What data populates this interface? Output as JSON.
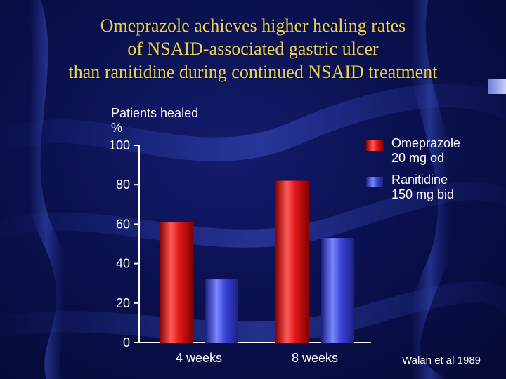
{
  "title_lines": [
    "Omeprazole achieves higher healing rates",
    "of NSAID-associated gastric ulcer",
    "than ranitidine during continued NSAID treatment"
  ],
  "source_note": "Walan et al 1989",
  "colors": {
    "title": "#e8d060",
    "omeprazole": "#e01818",
    "ranitidine": "#3a44d8",
    "background": "#0a1150"
  },
  "chart_data": {
    "type": "bar",
    "ylabel_lines": [
      "Patients healed",
      "%"
    ],
    "categories": [
      "4 weeks",
      "8 weeks"
    ],
    "series": [
      {
        "name": "Omeprazole 20 mg od",
        "name_lines": [
          "Omeprazole",
          "20 mg od"
        ],
        "values": [
          61,
          82
        ]
      },
      {
        "name": "Ranitidine 150 mg bid",
        "name_lines": [
          "Ranitidine",
          "150 mg bid"
        ],
        "values": [
          32,
          53
        ]
      }
    ],
    "ylim": [
      0,
      100
    ],
    "yticks": [
      0,
      20,
      40,
      60,
      80,
      100
    ],
    "grid": false,
    "legend_position": "top-right"
  }
}
